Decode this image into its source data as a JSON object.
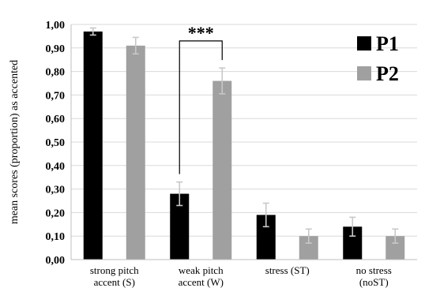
{
  "chart_data": {
    "type": "bar",
    "title": "",
    "ylabel": "mean scores (proportion) as accented",
    "xlabel": "",
    "categories": [
      [
        "strong pitch",
        "accent (S)"
      ],
      [
        "weak pitch",
        "accent (W)"
      ],
      [
        "stress (ST)"
      ],
      [
        "no stress",
        "(noST)"
      ]
    ],
    "series": [
      {
        "name": "P1",
        "color": "#000000",
        "values": [
          0.97,
          0.28,
          0.19,
          0.14
        ],
        "error": [
          0.015,
          0.05,
          0.05,
          0.04
        ]
      },
      {
        "name": "P2",
        "color": "#a0a0a0",
        "values": [
          0.91,
          0.76,
          0.1,
          0.1
        ],
        "error": [
          0.035,
          0.055,
          0.03,
          0.03
        ]
      }
    ],
    "ylim": [
      0,
      1
    ],
    "yticks": [
      "0,00",
      "0,10",
      "0,20",
      "0,30",
      "0,40",
      "0,50",
      "0,60",
      "0,70",
      "0,80",
      "0,90",
      "1,00"
    ],
    "grid": true,
    "legend_position": "top-right",
    "annotations": [
      {
        "text": "***",
        "category_index": 1,
        "type": "significance-bracket"
      }
    ]
  }
}
